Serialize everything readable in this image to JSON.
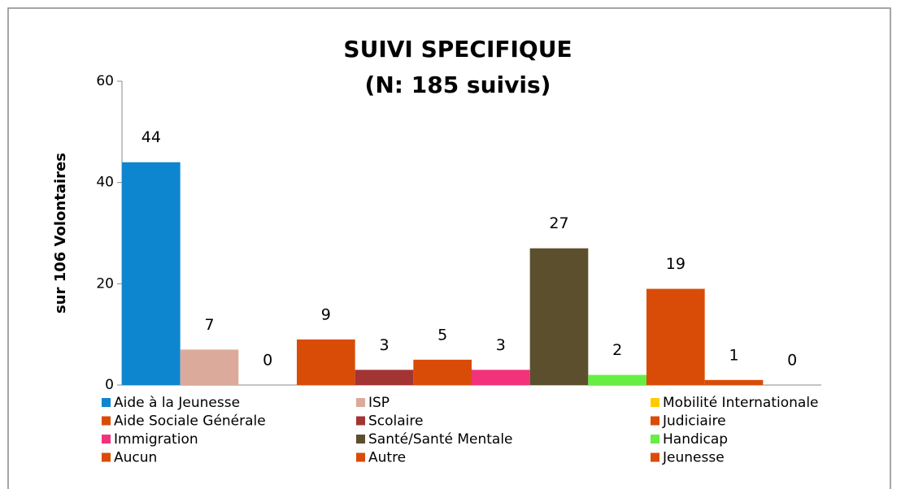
{
  "chart_data": {
    "type": "bar",
    "title": "SUIVI SPECIFIQUE",
    "subtitle": "(N: 185 suivis)",
    "y_label": "sur 106  Volontaires",
    "ylim": [
      0,
      60
    ],
    "yticks": [
      0,
      20,
      40,
      60
    ],
    "grid": false,
    "legend": "bottom",
    "series": [
      {
        "name": "Aide à la Jeunesse",
        "color": "#0e86cf",
        "values": [
          44
        ]
      },
      {
        "name": "ISP",
        "color": "#dcaa9a",
        "values": [
          7
        ]
      },
      {
        "name": "Mobilité Internationale",
        "color": "#ffcc00",
        "values": [
          0
        ]
      },
      {
        "name": "Aide Sociale Générale",
        "color": "#d94c08",
        "values": [
          9
        ]
      },
      {
        "name": "Scolaire",
        "color": "#a33434",
        "values": [
          3
        ]
      },
      {
        "name": "Judiciaire",
        "color": "#d94c08",
        "values": [
          5
        ]
      },
      {
        "name": "Immigration",
        "color": "#f2337c",
        "values": [
          3
        ]
      },
      {
        "name": "Santé/Santé Mentale",
        "color": "#5c4f2e",
        "values": [
          27
        ]
      },
      {
        "name": "Handicap",
        "color": "#66ee44",
        "values": [
          2
        ]
      },
      {
        "name": "Aucun",
        "color": "#d94c08",
        "values": [
          19
        ]
      },
      {
        "name": "Autre",
        "color": "#d94c08",
        "values": [
          1
        ]
      },
      {
        "name": "Jeunesse",
        "color": "#d94c08",
        "values": [
          0
        ]
      }
    ]
  }
}
